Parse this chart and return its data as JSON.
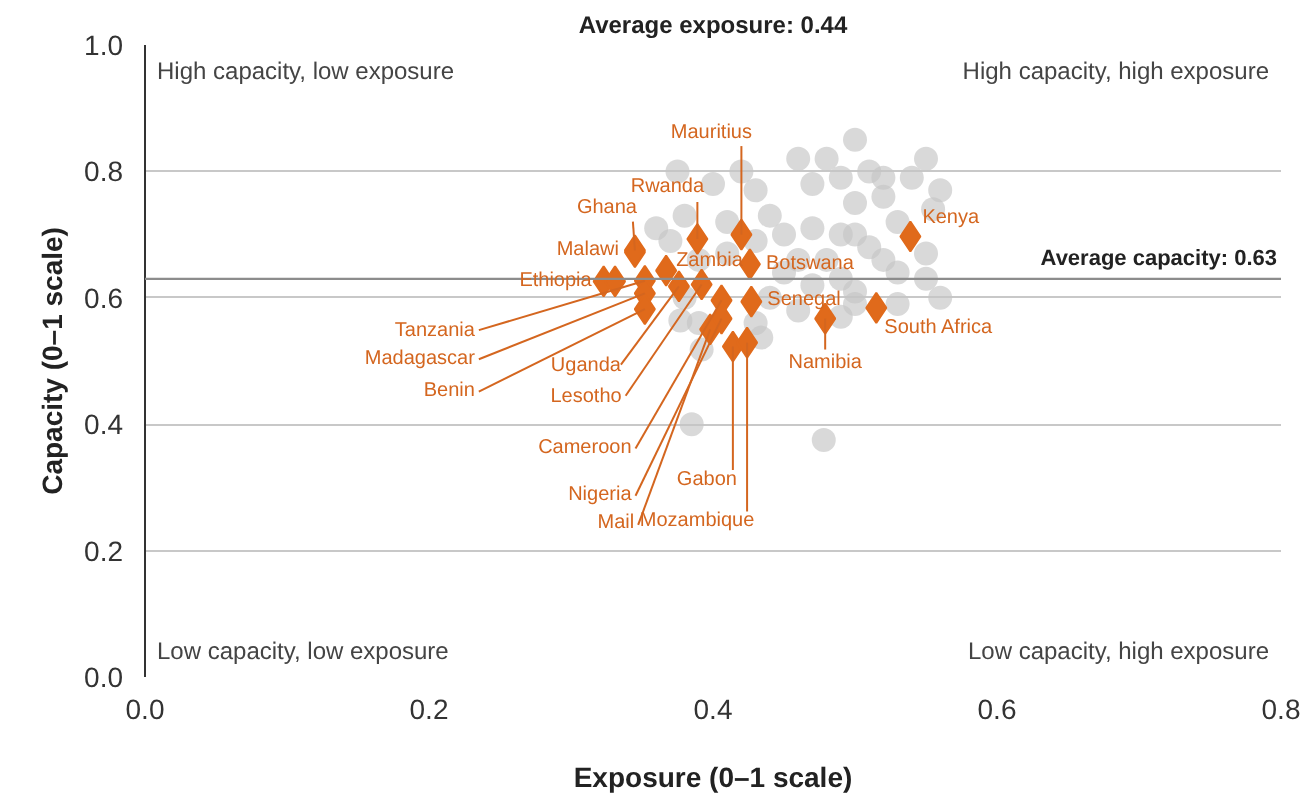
{
  "chart_data": {
    "type": "scatter",
    "xlabel": "Exposure (0–1 scale)",
    "ylabel": "Capacity (0–1 scale)",
    "xlim": [
      0,
      0.8
    ],
    "ylim": [
      0,
      1.0
    ],
    "xticks": [
      {
        "value": 0,
        "label": "0.0"
      },
      0.2,
      0.4,
      0.6,
      0.8
    ],
    "yticks": [
      {
        "value": 0,
        "label": "0.0"
      },
      0.2,
      0.4,
      0.6,
      0.8,
      {
        "value": 1,
        "label": "1.0"
      }
    ],
    "grid": "y",
    "ref_lines": [
      {
        "axis": "y",
        "value": 0.63,
        "label": "Average capacity: 0.63",
        "color": "#8c8c8c"
      }
    ],
    "series": [
      {
        "marker": "circle",
        "color": "#c4c4c4",
        "x": [
          0.375,
          0.4,
          0.42,
          0.43,
          0.44,
          0.36,
          0.37,
          0.38,
          0.41,
          0.41,
          0.43,
          0.45,
          0.46,
          0.47,
          0.48,
          0.49,
          0.5,
          0.51,
          0.52,
          0.5,
          0.52,
          0.53,
          0.54,
          0.55,
          0.555,
          0.56,
          0.47,
          0.49,
          0.5,
          0.51,
          0.52,
          0.48,
          0.46,
          0.45,
          0.47,
          0.49,
          0.5,
          0.53,
          0.55,
          0.56,
          0.55,
          0.44,
          0.46,
          0.49,
          0.5,
          0.39,
          0.38,
          0.39,
          0.43,
          0.377,
          0.392,
          0.434,
          0.385,
          0.478,
          0.53
        ],
        "values": [
          0.8,
          0.78,
          0.8,
          0.77,
          0.73,
          0.71,
          0.69,
          0.73,
          0.72,
          0.67,
          0.69,
          0.7,
          0.82,
          0.78,
          0.82,
          0.79,
          0.85,
          0.8,
          0.79,
          0.75,
          0.76,
          0.72,
          0.79,
          0.82,
          0.74,
          0.77,
          0.71,
          0.7,
          0.7,
          0.68,
          0.66,
          0.66,
          0.66,
          0.64,
          0.62,
          0.63,
          0.61,
          0.64,
          0.67,
          0.6,
          0.63,
          0.6,
          0.58,
          0.57,
          0.59,
          0.66,
          0.6,
          0.56,
          0.56,
          0.564,
          0.518,
          0.537,
          0.4,
          0.375,
          0.59
        ]
      },
      {
        "marker": "diamond",
        "color": "#e06a1b",
        "x": [
          0.42,
          0.389,
          0.345,
          0.345,
          0.323,
          0.367,
          0.426,
          0.427,
          0.539,
          0.479,
          0.515,
          0.352,
          0.352,
          0.352,
          0.376,
          0.392,
          0.406,
          0.406,
          0.398,
          0.414,
          0.424,
          0.331
        ],
        "values": [
          0.7,
          0.693,
          0.675,
          0.672,
          0.626,
          0.643,
          0.653,
          0.594,
          0.697,
          0.567,
          0.584,
          0.627,
          0.607,
          0.582,
          0.618,
          0.621,
          0.596,
          0.567,
          0.55,
          0.523,
          0.529,
          0.626
        ]
      }
    ],
    "annotations": [
      "High capacity, low exposure",
      "High capacity, high exposure",
      "Low capacity, low exposure",
      "Low capacity, high exposure",
      "Average exposure: 0.44",
      {
        "text": "Mauritius",
        "x": 0.42,
        "y": 0.7
      },
      {
        "text": "Rwanda",
        "x": 0.389,
        "y": 0.693
      },
      {
        "text": "Ghana",
        "x": 0.345,
        "y": 0.675
      },
      {
        "text": "Malawi",
        "x": 0.345,
        "y": 0.672
      },
      {
        "text": "Ethiopia",
        "x": 0.323,
        "y": 0.626
      },
      {
        "text": "Zambia",
        "x": 0.367,
        "y": 0.643
      },
      {
        "text": "Botswana",
        "x": 0.426,
        "y": 0.653
      },
      {
        "text": "Senegal",
        "x": 0.427,
        "y": 0.594
      },
      {
        "text": "Kenya",
        "x": 0.539,
        "y": 0.697
      },
      {
        "text": "Namibia",
        "x": 0.479,
        "y": 0.567
      },
      {
        "text": "South Africa",
        "x": 0.515,
        "y": 0.584
      },
      {
        "text": "Tanzania",
        "x": 0.352,
        "y": 0.627
      },
      {
        "text": "Madagascar",
        "x": 0.352,
        "y": 0.607
      },
      {
        "text": "Benin",
        "x": 0.352,
        "y": 0.582
      },
      {
        "text": "Uganda",
        "x": 0.376,
        "y": 0.618
      },
      {
        "text": "Lesotho",
        "x": 0.392,
        "y": 0.621
      },
      {
        "text": "Cameroon",
        "x": 0.406,
        "y": 0.596
      },
      {
        "text": "Nigeria",
        "x": 0.406,
        "y": 0.567
      },
      {
        "text": "Mail",
        "x": 0.398,
        "y": 0.55
      },
      {
        "text": "Gabon",
        "x": 0.414,
        "y": 0.523
      },
      {
        "text": "Mozambique",
        "x": 0.424,
        "y": 0.529
      }
    ]
  }
}
